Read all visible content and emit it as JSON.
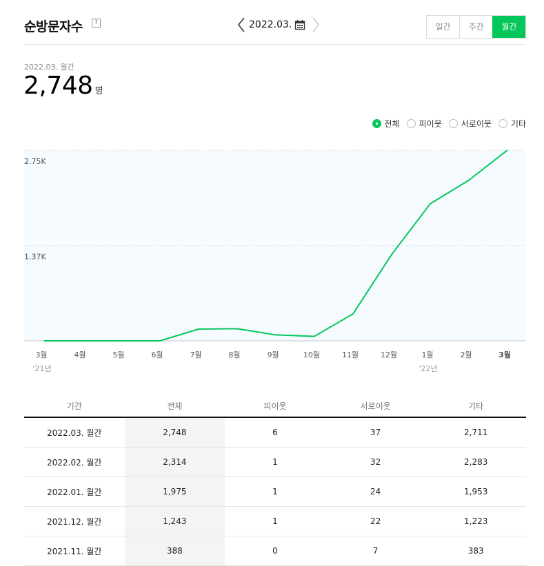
{
  "header": {
    "title": "순방문자수",
    "help_label": "?",
    "date": "2022.03.",
    "tabs": [
      {
        "label": "일간",
        "active": false
      },
      {
        "label": "주간",
        "active": false
      },
      {
        "label": "월간",
        "active": true
      }
    ]
  },
  "summary": {
    "period": "2022.03. 월간",
    "value": "2,748",
    "unit": "명"
  },
  "legend": [
    {
      "label": "전체",
      "selected": true
    },
    {
      "label": "피이웃",
      "selected": false
    },
    {
      "label": "서로이웃",
      "selected": false
    },
    {
      "label": "기타",
      "selected": false
    }
  ],
  "colors": {
    "accent": "#03c75a",
    "chart_bg": "#f5fbff"
  },
  "chart_data": {
    "type": "line",
    "categories": [
      "3월",
      "4월",
      "5월",
      "6월",
      "7월",
      "8월",
      "9월",
      "10월",
      "11월",
      "12월",
      "1월",
      "2월",
      "3월"
    ],
    "sublabels": [
      "'21년",
      "",
      "",
      "",
      "",
      "",
      "",
      "",
      "",
      "",
      "'22년",
      "",
      ""
    ],
    "series": [
      {
        "values": [
          0,
          0,
          0,
          0,
          170,
          175,
          85,
          65,
          388,
          1243,
          1975,
          2314,
          2748
        ]
      }
    ],
    "yticks": [
      {
        "value": 1374,
        "label": "1.37K"
      },
      {
        "value": 2748,
        "label": "2.75K"
      }
    ],
    "ylim": [
      0,
      2748
    ],
    "grid": true
  },
  "table": {
    "headers": [
      "기간",
      "전체",
      "피이웃",
      "서로이웃",
      "기타"
    ],
    "rows": [
      [
        "2022.03. 월간",
        "2,748",
        "6",
        "37",
        "2,711"
      ],
      [
        "2022.02. 월간",
        "2,314",
        "1",
        "32",
        "2,283"
      ],
      [
        "2022.01. 월간",
        "1,975",
        "1",
        "24",
        "1,953"
      ],
      [
        "2021.12. 월간",
        "1,243",
        "1",
        "22",
        "1,223"
      ],
      [
        "2021.11. 월간",
        "388",
        "0",
        "7",
        "383"
      ]
    ]
  }
}
